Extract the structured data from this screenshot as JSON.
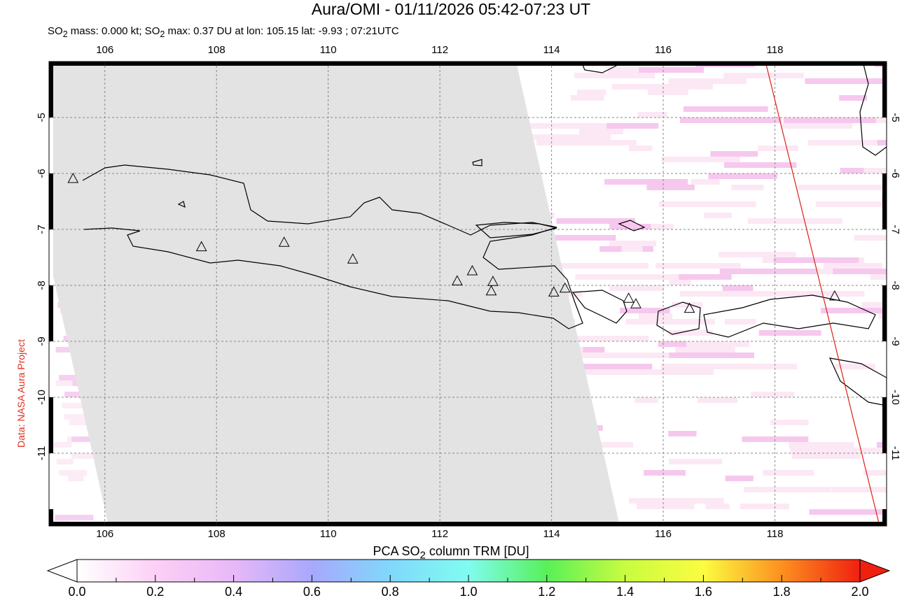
{
  "title": "Aura/OMI - 01/11/2026 05:42-07:23 UT",
  "subtitle": {
    "pre1": "SO",
    "sub1": "2",
    "mid1": " mass: 0.000 kt; SO",
    "sub2": "2",
    "post": " max: 0.37 DU at lon: 105.15 lat: -9.93 ; 07:21UTC"
  },
  "credit": "Data: NASA Aura Project",
  "map": {
    "lon_range": [
      105,
      120
    ],
    "lat_range": [
      -12.3,
      -4
    ],
    "lon_ticks": [
      "106",
      "108",
      "110",
      "112",
      "114",
      "116",
      "118"
    ],
    "lat_ticks": [
      "-5",
      "-6",
      "-7",
      "-8",
      "-9",
      "-10",
      "-11"
    ],
    "volcanoes": [
      [
        105.43,
        -6.1
      ],
      [
        107.73,
        -7.32
      ],
      [
        109.21,
        -7.24
      ],
      [
        110.44,
        -7.54
      ],
      [
        112.31,
        -7.93
      ],
      [
        112.58,
        -7.75
      ],
      [
        112.95,
        -7.94
      ],
      [
        112.92,
        -8.11
      ],
      [
        114.04,
        -8.13
      ],
      [
        114.24,
        -8.06
      ],
      [
        115.38,
        -8.24
      ],
      [
        115.51,
        -8.34
      ],
      [
        116.47,
        -8.42
      ],
      [
        119.07,
        -8.2
      ]
    ],
    "colors": {
      "no_data": "#e3e3e3",
      "coast": "#000000",
      "orbit_line": "#e02010"
    }
  },
  "colorbar": {
    "title_pre": "PCA SO",
    "title_sub": "2",
    "title_post": " column TRM [DU]",
    "labels": [
      "0.0",
      "0.2",
      "0.4",
      "0.6",
      "0.8",
      "1.0",
      "1.2",
      "1.4",
      "1.6",
      "1.8",
      "2.0"
    ],
    "range": [
      0,
      2
    ],
    "stops": [
      "#ffffff",
      "#fcd0f6",
      "#e8b8f8",
      "#a8a8fc",
      "#80d8fc",
      "#80fcf0",
      "#58f058",
      "#c8fc40",
      "#fcfc40",
      "#fc9020",
      "#f02010"
    ]
  }
}
